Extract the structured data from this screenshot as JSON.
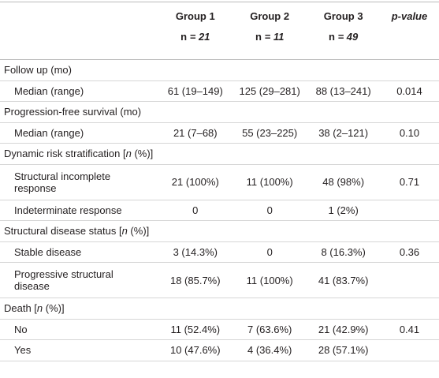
{
  "table": {
    "columns": [
      [
        "Group 1"
      ],
      [
        "Group 2"
      ],
      [
        "Group 3"
      ],
      [
        "p",
        "-value"
      ]
    ],
    "counts": [
      [
        "n",
        " = 21"
      ],
      [
        "n",
        " = 11"
      ],
      [
        "n",
        " = 49"
      ]
    ],
    "rows": [
      {
        "section": [
          "Follow up (mo)"
        ]
      },
      {
        "label": [
          "Median (range)"
        ],
        "values": [
          "61 (19–149)",
          "125 (29–281)",
          "88 (13–241)",
          "0.014"
        ]
      },
      {
        "section": [
          "Progression-free survival (mo)"
        ]
      },
      {
        "label": [
          "Median (range)"
        ],
        "values": [
          "21 (7–68)",
          "55 (23–225)",
          "38 (2–121)",
          "0.10"
        ]
      },
      {
        "section": [
          "Dynamic risk stratification [",
          "n",
          " (%)]"
        ]
      },
      {
        "label": [
          "Structural incomplete response"
        ],
        "values": [
          "21 (100%)",
          "11 (100%)",
          "48 (98%)",
          "0.71"
        ]
      },
      {
        "label": [
          "Indeterminate response"
        ],
        "values": [
          "0",
          "0",
          "1 (2%)"
        ]
      },
      {
        "section": [
          "Structural disease status [",
          "n",
          " (%)]"
        ]
      },
      {
        "label": [
          "Stable disease"
        ],
        "values": [
          "3 (14.3%)",
          "0",
          "8 (16.3%)",
          "0.36"
        ]
      },
      {
        "label": [
          "Progressive structural disease"
        ],
        "values": [
          "18 (85.7%)",
          "11 (100%)",
          "41 (83.7%)"
        ]
      },
      {
        "section": [
          "Death [",
          "n",
          " (%)]"
        ]
      },
      {
        "label": [
          "No"
        ],
        "values": [
          "11 (52.4%)",
          "7 (63.6%)",
          "21 (42.9%)",
          "0.41"
        ]
      },
      {
        "label": [
          "Yes"
        ],
        "values": [
          "10 (47.6%)",
          "4 (36.4%)",
          "28 (57.1%)"
        ]
      }
    ]
  }
}
